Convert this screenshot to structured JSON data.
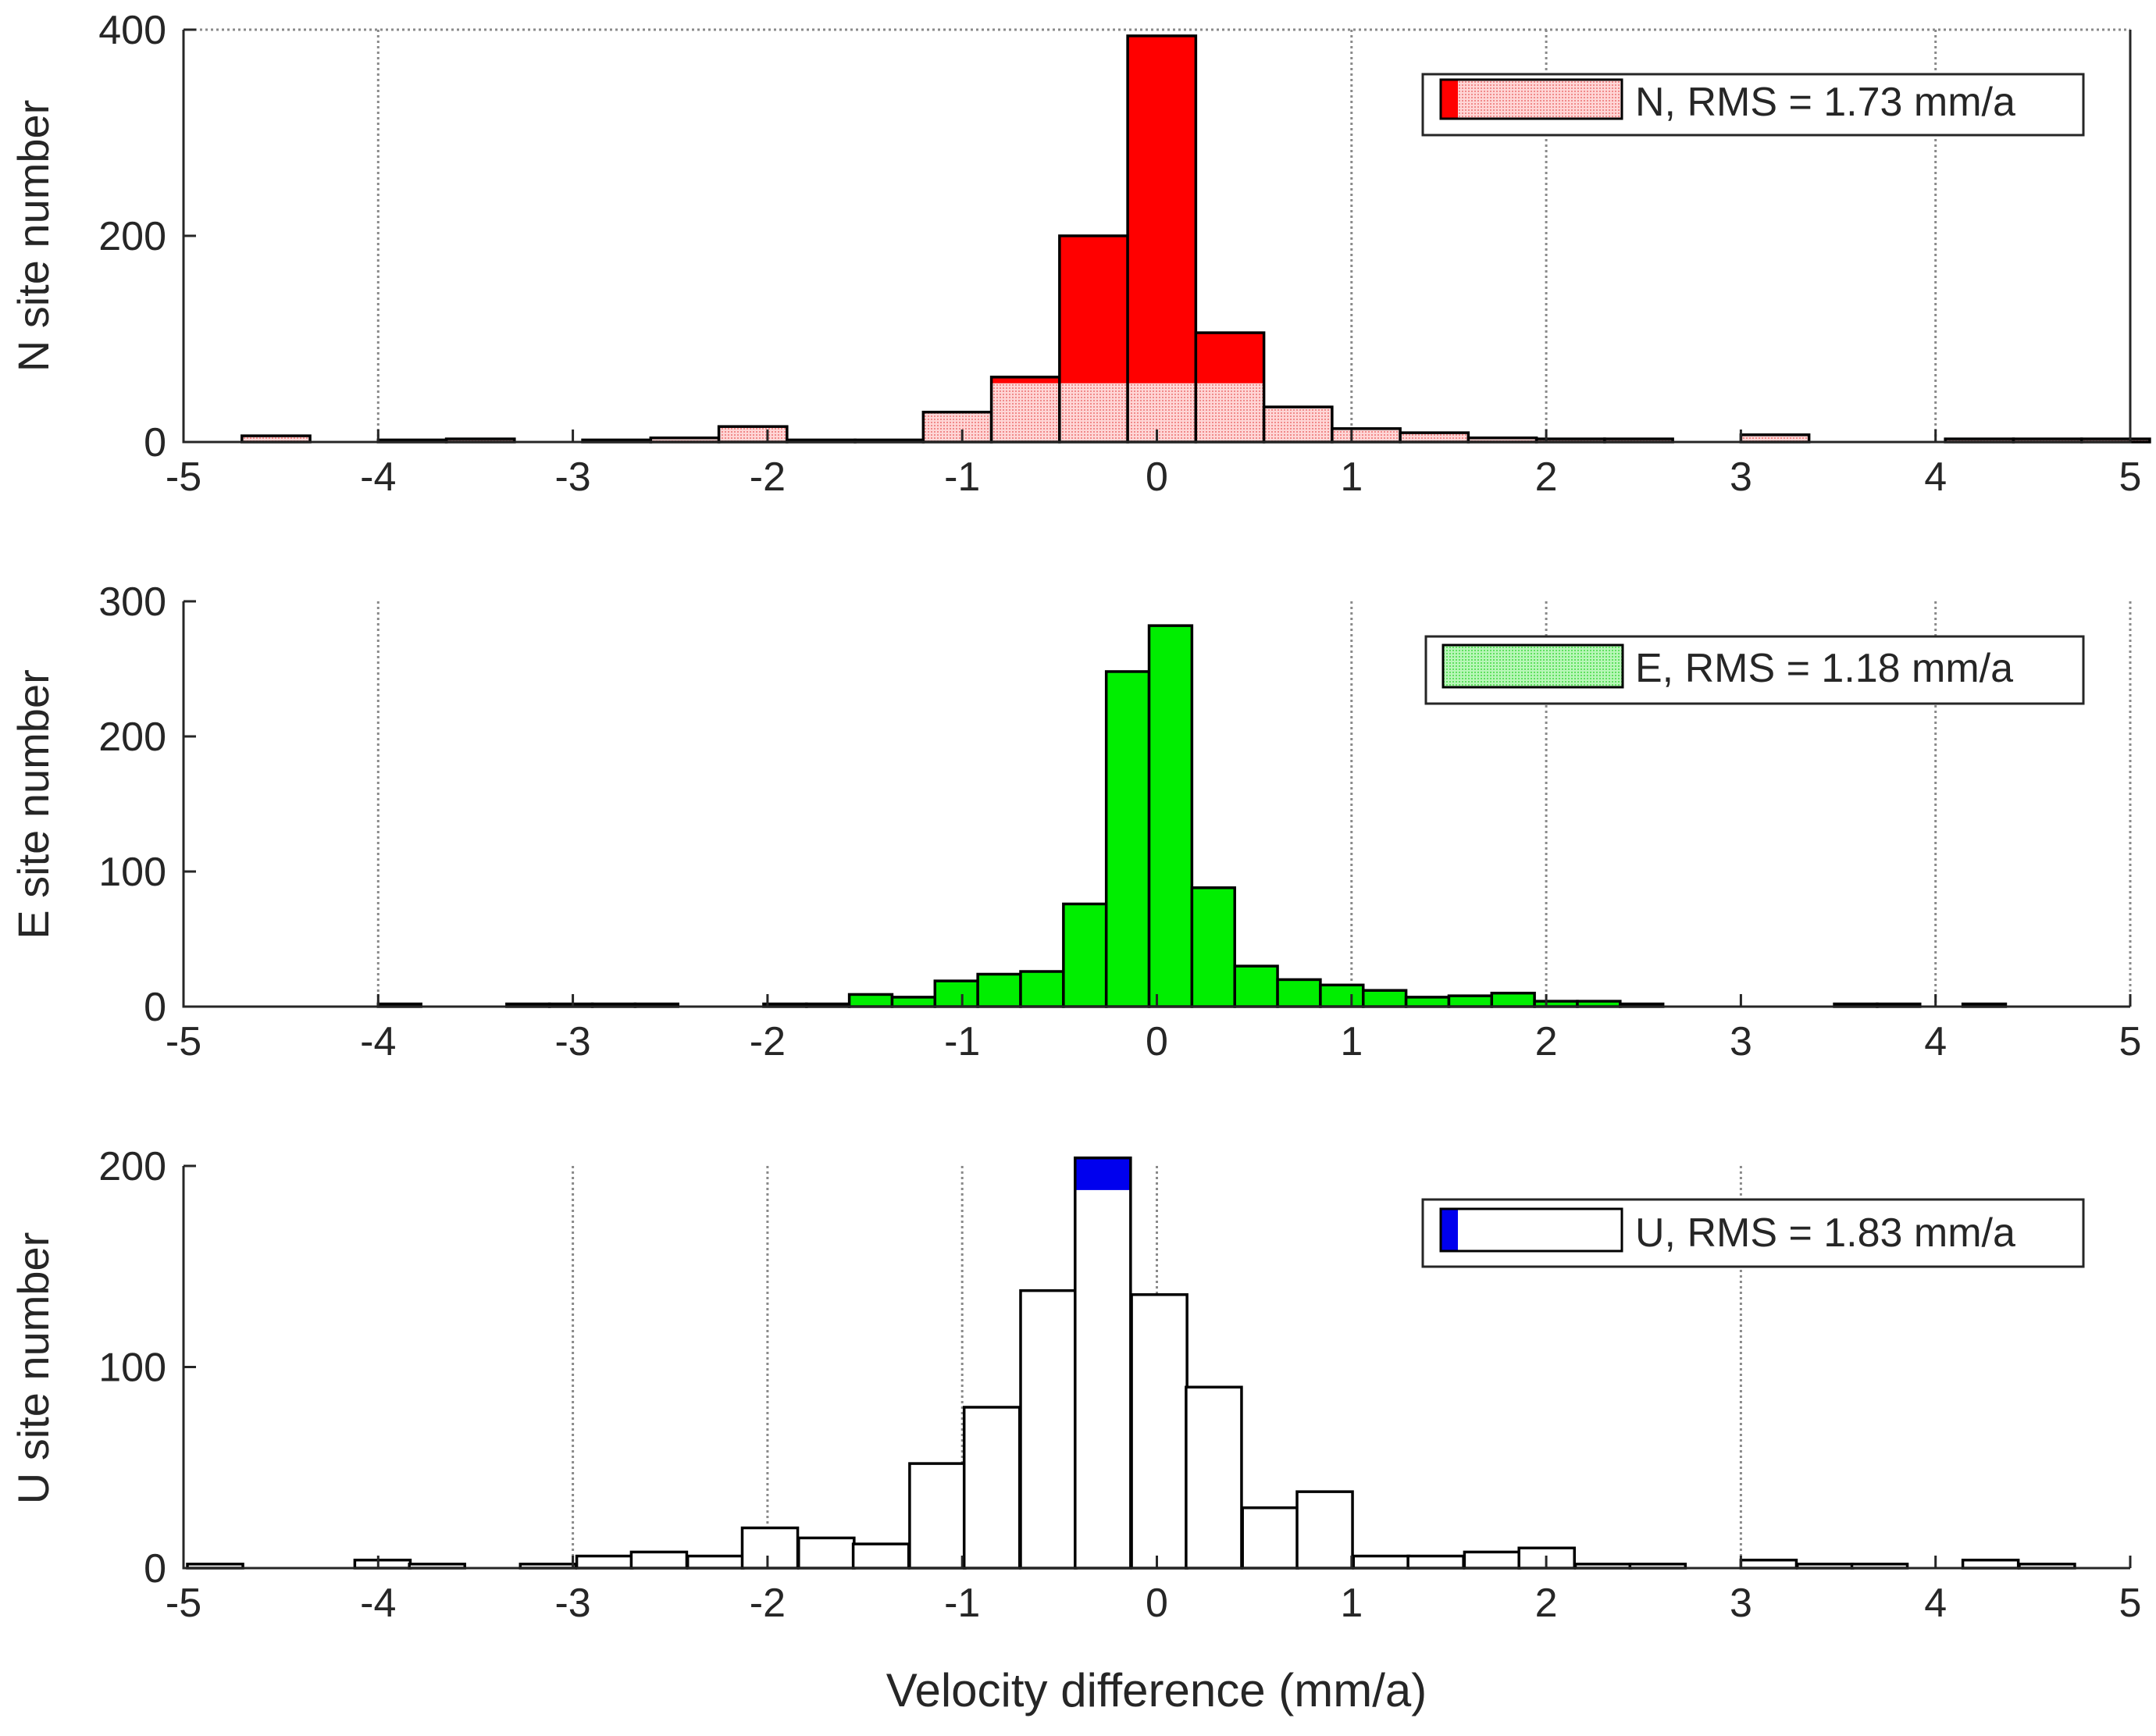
{
  "colors": {
    "axis": "#262626",
    "grid": "#8a8a8a",
    "bar_edge": "#000000"
  },
  "xlabel": "Velocity difference (mm/a)",
  "chart_data": [
    {
      "type": "bar",
      "id": "N",
      "ylabel": "N site number",
      "legend": "N, RMS = 1.73 mm/a",
      "legend_location": "top-right",
      "xlim": [
        -5,
        5
      ],
      "ylim": [
        0,
        400
      ],
      "xticks": [
        -5,
        -4,
        -3,
        -2,
        -1,
        0,
        1,
        2,
        3,
        4,
        5
      ],
      "xtick_labels": [
        "-5",
        "-4",
        "-3",
        "-2",
        "-1",
        "0",
        "1",
        "2",
        "3",
        "4",
        "5"
      ],
      "yticks": [
        0,
        200,
        400
      ],
      "ytick_labels": [
        "0",
        "200",
        "400"
      ],
      "vgrid_x": [
        -4,
        1,
        2,
        4
      ],
      "bin_width": 0.35,
      "series": [
        {
          "name": "histogram",
          "fill": "#ff0000",
          "hatch": "#ffc8c8",
          "hatch_level": 57,
          "bins": [
            {
              "x0": -4.7,
              "count": 6
            },
            {
              "x0": -4.0,
              "count": 2
            },
            {
              "x0": -3.65,
              "count": 3
            },
            {
              "x0": -2.95,
              "count": 2
            },
            {
              "x0": -2.6,
              "count": 4
            },
            {
              "x0": -2.25,
              "count": 15
            },
            {
              "x0": -1.9,
              "count": 2
            },
            {
              "x0": -1.55,
              "count": 2
            },
            {
              "x0": -1.2,
              "count": 29
            },
            {
              "x0": -0.85,
              "count": 63
            },
            {
              "x0": -0.5,
              "count": 200
            },
            {
              "x0": -0.15,
              "count": 394
            },
            {
              "x0": 0.2,
              "count": 106
            },
            {
              "x0": 0.55,
              "count": 34
            },
            {
              "x0": 0.9,
              "count": 13
            },
            {
              "x0": 1.25,
              "count": 9
            },
            {
              "x0": 1.6,
              "count": 4
            },
            {
              "x0": 1.95,
              "count": 3
            },
            {
              "x0": 2.3,
              "count": 3
            },
            {
              "x0": 3.0,
              "count": 7
            },
            {
              "x0": 4.05,
              "count": 3
            },
            {
              "x0": 4.4,
              "count": 3
            },
            {
              "x0": 4.75,
              "count": 3
            }
          ]
        }
      ]
    },
    {
      "type": "bar",
      "id": "E",
      "ylabel": "E site number",
      "legend": "E, RMS = 1.18 mm/a",
      "legend_location": "top-right",
      "xlim": [
        -5,
        5
      ],
      "ylim": [
        0,
        300
      ],
      "xticks": [
        -5,
        -4,
        -3,
        -2,
        -1,
        0,
        1,
        2,
        3,
        4,
        5
      ],
      "xtick_labels": [
        "-5",
        "-4",
        "-3",
        "-2",
        "-1",
        "0",
        "1",
        "2",
        "3",
        "4",
        "5"
      ],
      "yticks": [
        0,
        100,
        200,
        300
      ],
      "ytick_labels": [
        "0",
        "100",
        "200",
        "300"
      ],
      "vgrid_x": [
        -4,
        1,
        2,
        4,
        5
      ],
      "bin_width": 0.22,
      "series": [
        {
          "name": "histogram",
          "fill": "#00ee00",
          "hatch": "#9cf59c",
          "hatch_level": 0,
          "bins": [
            {
              "x0": -4.0,
              "count": 2
            },
            {
              "x0": -3.34,
              "count": 2
            },
            {
              "x0": -3.12,
              "count": 2
            },
            {
              "x0": -2.9,
              "count": 2
            },
            {
              "x0": -2.68,
              "count": 2
            },
            {
              "x0": -2.02,
              "count": 2
            },
            {
              "x0": -1.8,
              "count": 2
            },
            {
              "x0": -1.58,
              "count": 9
            },
            {
              "x0": -1.36,
              "count": 7
            },
            {
              "x0": -1.14,
              "count": 19
            },
            {
              "x0": -0.92,
              "count": 24
            },
            {
              "x0": -0.7,
              "count": 26
            },
            {
              "x0": -0.48,
              "count": 76
            },
            {
              "x0": -0.26,
              "count": 248
            },
            {
              "x0": -0.04,
              "count": 282
            },
            {
              "x0": 0.18,
              "count": 88
            },
            {
              "x0": 0.4,
              "count": 30
            },
            {
              "x0": 0.62,
              "count": 20
            },
            {
              "x0": 0.84,
              "count": 16
            },
            {
              "x0": 1.06,
              "count": 12
            },
            {
              "x0": 1.28,
              "count": 7
            },
            {
              "x0": 1.5,
              "count": 8
            },
            {
              "x0": 1.72,
              "count": 10
            },
            {
              "x0": 1.94,
              "count": 4
            },
            {
              "x0": 2.16,
              "count": 4
            },
            {
              "x0": 2.38,
              "count": 2
            },
            {
              "x0": 3.48,
              "count": 2
            },
            {
              "x0": 3.7,
              "count": 2
            },
            {
              "x0": 4.14,
              "count": 2
            }
          ]
        }
      ]
    },
    {
      "type": "bar",
      "id": "U",
      "ylabel": "U site number",
      "legend": "U, RMS = 1.83 mm/a",
      "legend_location": "top-right",
      "xlim": [
        -5,
        5
      ],
      "ylim": [
        0,
        200
      ],
      "xticks": [
        -5,
        -4,
        -3,
        -2,
        -1,
        0,
        1,
        2,
        3,
        4,
        5
      ],
      "xtick_labels": [
        "-5",
        "-4",
        "-3",
        "-2",
        "-1",
        "0",
        "1",
        "2",
        "3",
        "4",
        "5"
      ],
      "yticks": [
        0,
        100,
        200
      ],
      "ytick_labels": [
        "0",
        "100",
        "200"
      ],
      "vgrid_x": [
        -3,
        -2,
        -1,
        0,
        3
      ],
      "bin_width": 0.285,
      "series": [
        {
          "name": "histogram",
          "fill": "#0000ee",
          "hatch": "#ffffff",
          "hatch_level": 188,
          "bins": [
            {
              "x0": -4.98,
              "count": 2
            },
            {
              "x0": -4.12,
              "count": 4
            },
            {
              "x0": -3.84,
              "count": 2
            },
            {
              "x0": -3.27,
              "count": 2
            },
            {
              "x0": -2.98,
              "count": 6
            },
            {
              "x0": -2.7,
              "count": 8
            },
            {
              "x0": -2.41,
              "count": 6
            },
            {
              "x0": -2.13,
              "count": 20
            },
            {
              "x0": -1.84,
              "count": 15
            },
            {
              "x0": -1.56,
              "count": 12
            },
            {
              "x0": -1.27,
              "count": 52
            },
            {
              "x0": -0.99,
              "count": 80
            },
            {
              "x0": -0.7,
              "count": 138
            },
            {
              "x0": -0.42,
              "count": 204
            },
            {
              "x0": -0.13,
              "count": 136
            },
            {
              "x0": 0.15,
              "count": 90
            },
            {
              "x0": 0.44,
              "count": 30
            },
            {
              "x0": 0.72,
              "count": 38
            },
            {
              "x0": 1.01,
              "count": 6
            },
            {
              "x0": 1.29,
              "count": 6
            },
            {
              "x0": 1.58,
              "count": 8
            },
            {
              "x0": 1.86,
              "count": 10
            },
            {
              "x0": 2.15,
              "count": 2
            },
            {
              "x0": 2.43,
              "count": 2
            },
            {
              "x0": 3.0,
              "count": 4
            },
            {
              "x0": 3.29,
              "count": 2
            },
            {
              "x0": 3.57,
              "count": 2
            },
            {
              "x0": 4.14,
              "count": 4
            },
            {
              "x0": 4.43,
              "count": 2
            }
          ]
        }
      ]
    }
  ]
}
